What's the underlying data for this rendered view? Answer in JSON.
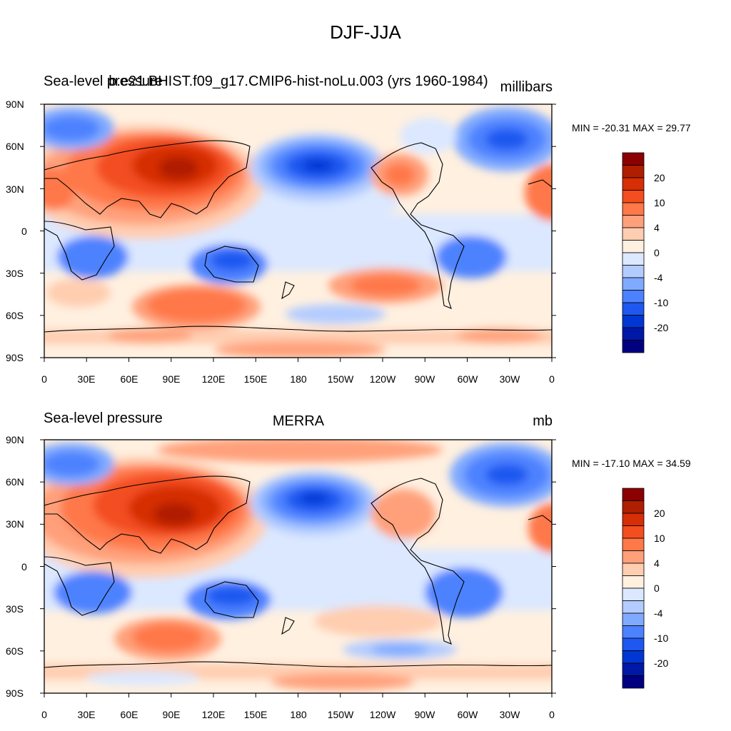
{
  "title": "DJF-JJA",
  "colors": {
    "palette": [
      "#000080",
      "#0018a8",
      "#0037d4",
      "#1e58f0",
      "#4d82ff",
      "#80aaff",
      "#b3ccff",
      "#dbe8ff",
      "#fff0e0",
      "#ffcdb0",
      "#ffa07a",
      "#ff7848",
      "#f34d20",
      "#d62e06",
      "#b01e00",
      "#8b0000"
    ],
    "coast": "#000000"
  },
  "panels": [
    {
      "left_title": "Sea-level pressure",
      "center_title": "b.e21.BHIST.f09_g17.CMIP6-hist-noLu.003 (yrs 1960-1984)",
      "units": "millibars",
      "minmax": "MIN = -20.31 MAX =  29.77",
      "lat_ticks": [
        "90N",
        "60N",
        "30N",
        "0",
        "30S",
        "60S",
        "90S"
      ],
      "lon_ticks": [
        "0",
        "30E",
        "60E",
        "90E",
        "120E",
        "150E",
        "180",
        "150W",
        "120W",
        "90W",
        "60W",
        "30W",
        "0"
      ],
      "colorbar_labels": [
        "20",
        "10",
        "4",
        "0",
        "-4",
        "-10",
        "-20"
      ]
    },
    {
      "left_title": "Sea-level pressure",
      "center_title": "MERRA",
      "units": "mb",
      "minmax": "MIN = -17.10 MAX =  34.59",
      "lat_ticks": [
        "90N",
        "60N",
        "30N",
        "0",
        "30S",
        "60S",
        "90S"
      ],
      "lon_ticks": [
        "0",
        "30E",
        "60E",
        "90E",
        "120E",
        "150E",
        "180",
        "150W",
        "120W",
        "90W",
        "60W",
        "30W",
        "0"
      ],
      "colorbar_labels": [
        "20",
        "10",
        "4",
        "0",
        "-4",
        "-10",
        "-20"
      ]
    }
  ]
}
